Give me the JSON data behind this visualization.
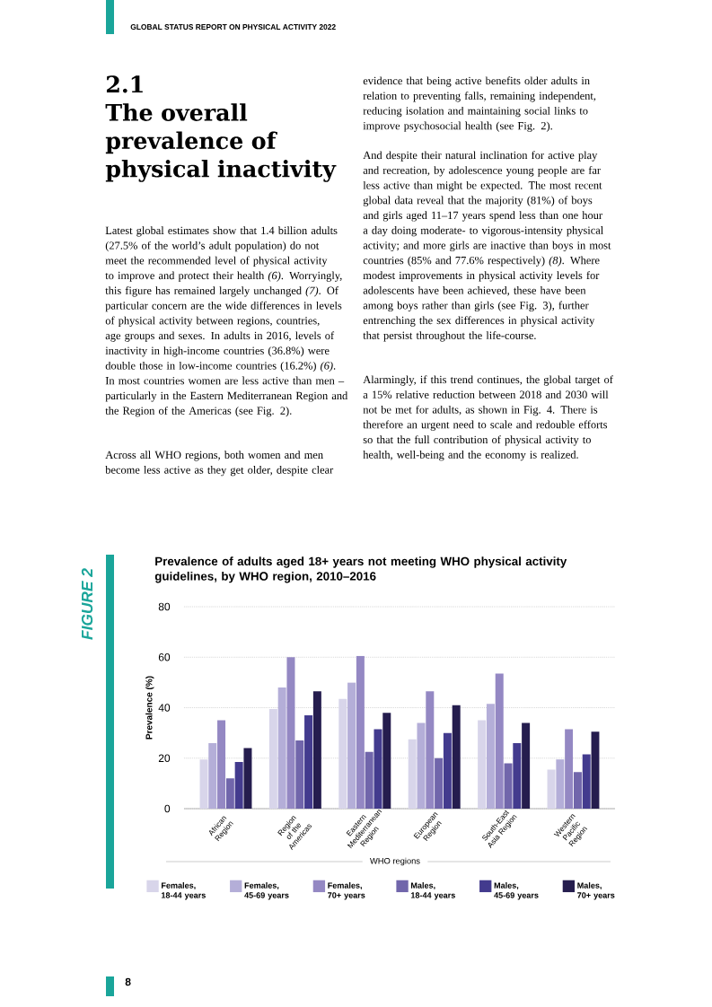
{
  "chart_data": {
    "type": "bar",
    "title": "Prevalence of adults aged 18+ years not meeting WHO physical activity guidelines, by WHO region, 2010–2016",
    "xlabel": "WHO regions",
    "ylabel": "Prevalence (%)",
    "categories": [
      "African Region",
      "Region of the Americas",
      "Eastern Mediterranean Region",
      "European Region",
      "South-East Asia Region",
      "Western Pacific Region"
    ],
    "series": [
      {
        "name": "Females, 18-44 years",
        "color": "#d8d5ea",
        "values": [
          19.5,
          39.5,
          43.5,
          27.5,
          35,
          15.5
        ]
      },
      {
        "name": "Females, 45-69 years",
        "color": "#b4aed8",
        "values": [
          26,
          48,
          50,
          34,
          41.5,
          19.5
        ]
      },
      {
        "name": "Females, 70+ years",
        "color": "#9488c3",
        "values": [
          35,
          60,
          60.5,
          46.5,
          53.5,
          31.5
        ]
      },
      {
        "name": "Males, 18-44 years",
        "color": "#7166ab",
        "values": [
          12,
          27,
          22.5,
          20,
          18,
          14.5
        ]
      },
      {
        "name": "Males, 45-69 years",
        "color": "#433b8e",
        "values": [
          18.5,
          37,
          31.5,
          30,
          26,
          21.5
        ]
      },
      {
        "name": "Males, 70+ years",
        "color": "#251d4e",
        "values": [
          24,
          46.5,
          38,
          41,
          34,
          30.5
        ]
      }
    ],
    "ylim": [
      0,
      80
    ],
    "yticks": [
      0,
      20,
      40,
      60,
      80
    ],
    "grid": "y",
    "legend": "bottom",
    "annotations": [
      "GLOBAL STATUS REPORT ON PHYSICAL ACTIVITY 2022",
      "2.1",
      "The overall prevalence of physical inactivity",
      "Latest global estimates show that 1.4 billion adults (27.5% of the world’s adult population) do not meet the recommended level of physical activity to improve and protect their health *(6)*. Worryingly, this figure has remained largely unchanged *(7)*. Of particular concern are the wide differences in levels of physical activity between regions, countries, age groups and sexes. In adults in 2016, levels of inactivity in high-income countries (36.8%) were double those in low-income countries (16.2%) *(6)*. In most countries women are less active than men – particularly in the Eastern Mediterranean Region and the Region of the Americas (see Fig. 2).",
      "Across all WHO regions, both women and men become less active as they get older, despite clear",
      "evidence that being active benefits older adults in relation to preventing falls, remaining independent, reducing isolation and maintaining social links to improve psychosocial health (see Fig. 2).",
      "And despite their natural inclination for active play and recreation, by adolescence young people are far less active than might be expected. The most recent global data reveal that the majority (81%) of boys and girls aged 11–17 years spend less than one hour a day doing moderate- to vigorous-intensity physical activity; and more girls are inactive than boys in most countries (85% and 77.6% respectively) *(8)*. Where modest improvements in physical activity levels for adolescents have been achieved, these have been among boys rather than girls (see Fig. 3), further entrenching the sex differences in physical activity that persist throughout the life-course.",
      "Alarmingly, if this trend continues, the global target of a 15% relative reduction between 2018 and 2030 will not be met for adults, as shown in Fig. 4. There is therefore an urgent need to scale and redouble efforts so that the full contribution of physical activity to health, well-being and the economy is realized.",
      "FIGURE 2",
      "8"
    ]
  }
}
